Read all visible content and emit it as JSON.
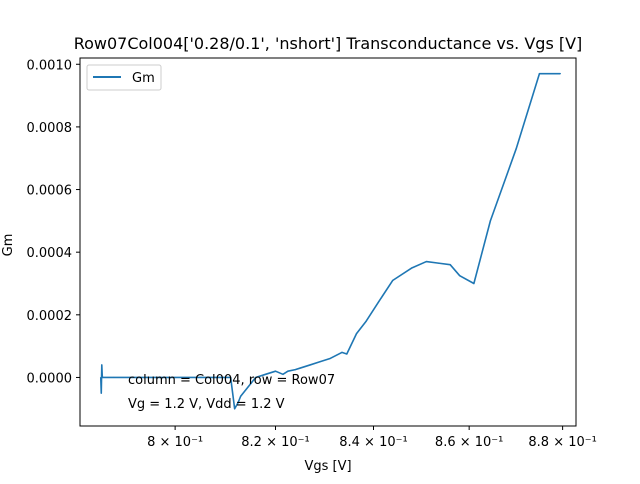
{
  "chart_data": {
    "type": "line",
    "title": "Row07Col004['0.28/0.1', 'nshort'] Transconductance vs. Vgs [V]",
    "xlabel": "Vgs [V]",
    "ylabel": "Gm",
    "xlim": [
      0.7815,
      0.8829
    ],
    "ylim": [
      -0.000155,
      0.00102
    ],
    "x_scale": "log",
    "x_ticks": [
      {
        "value": 0.8,
        "label": "8 × 10⁻¹"
      },
      {
        "value": 0.82,
        "label": "8.2 × 10⁻¹"
      },
      {
        "value": 0.84,
        "label": "8.4 × 10⁻¹"
      },
      {
        "value": 0.86,
        "label": "8.6 × 10⁻¹"
      },
      {
        "value": 0.88,
        "label": "8.8 × 10⁻¹"
      }
    ],
    "y_ticks": [
      {
        "value": 0.0,
        "label": "0.0000"
      },
      {
        "value": 0.0002,
        "label": "0.0002"
      },
      {
        "value": 0.0004,
        "label": "0.0004"
      },
      {
        "value": 0.0006,
        "label": "0.0006"
      },
      {
        "value": 0.0008,
        "label": "0.0008"
      },
      {
        "value": 0.001,
        "label": "0.0010"
      }
    ],
    "legend": {
      "position": "top-left",
      "entries": [
        "Gm"
      ]
    },
    "grid": false,
    "annotations": [
      "column = Col004, row = Row07",
      "Vg = 1.2 V, Vdd = 1.2 V"
    ],
    "series": [
      {
        "name": "Gm",
        "color": "#1f77b4",
        "x": [
          0.7855,
          0.7856,
          0.7857,
          0.7858,
          0.7859,
          0.786,
          0.7861,
          0.788,
          0.795,
          0.8,
          0.805,
          0.811,
          0.8118,
          0.8125,
          0.813,
          0.814,
          0.815,
          0.816,
          0.818,
          0.82,
          0.8215,
          0.8225,
          0.824,
          0.825,
          0.827,
          0.829,
          0.831,
          0.8335,
          0.8345,
          0.8365,
          0.8385,
          0.841,
          0.844,
          0.848,
          0.851,
          0.8535,
          0.856,
          0.858,
          0.861,
          0.8645,
          0.87,
          0.875,
          0.8795
        ],
        "y": [
          0.0,
          -5e-05,
          4e-05,
          0.0,
          0.0,
          0.0,
          0.0,
          0.0,
          0.0,
          0.0,
          0.0,
          0.0,
          -0.0001,
          -8e-05,
          -6e-05,
          -4e-05,
          -2e-05,
          0.0,
          1e-05,
          2e-05,
          1e-05,
          2e-05,
          2.5e-05,
          3e-05,
          4e-05,
          5e-05,
          6e-05,
          8e-05,
          7.5e-05,
          0.00014,
          0.00018,
          0.00024,
          0.00031,
          0.00035,
          0.00037,
          0.000365,
          0.00036,
          0.000325,
          0.0003,
          0.0005,
          0.00073,
          0.00097,
          0.00097
        ]
      }
    ]
  }
}
